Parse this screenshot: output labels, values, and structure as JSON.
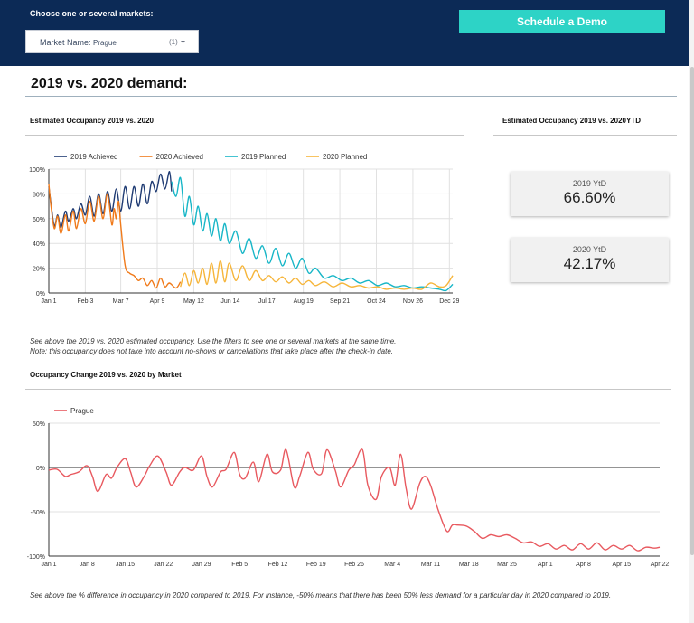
{
  "header": {
    "filter_label": "Choose one or several markets:",
    "market_field_label": "Market Name",
    "market_value": "Prague",
    "market_count": "(1)",
    "demo_button_label": "Schedule a Demo",
    "colors": {
      "header_bg": "#0c2a56",
      "button": "#2dd3c6"
    }
  },
  "page_title": "2019 vs. 2020 demand:",
  "occupancy_section_title": "Estimated Occupancy 2019 vs. 2020",
  "ytd_section_title": "Estimated Occupancy 2019 vs. 2020YTD",
  "kpis": [
    {
      "label": "2019 YtD",
      "value": "66.60%"
    },
    {
      "label": "2020 YtD",
      "value": "42.17%"
    }
  ],
  "occupancy_notes": [
    "See above the 2019 vs. 2020 estimated occupancy. Use the filters to see one or several markets at the same time.",
    "Note: this occupancy does not take into account no-shows or cancellations that take place after the check-in date."
  ],
  "change_section_title": "Occupancy Change 2019 vs. 2020 by Market",
  "change_note": "See above the % difference in occupancy in 2020 compared to 2019. For instance, -50% means that there has been 50% less demand for a particular day in 2020 compared to 2019.",
  "chart_data": [
    {
      "type": "line",
      "x_unit": "day of year",
      "x_ticks": [
        {
          "label": "Jan 1",
          "x": 1
        },
        {
          "label": "Feb 3",
          "x": 34
        },
        {
          "label": "Mar 7",
          "x": 66
        },
        {
          "label": "Apr 9",
          "x": 99
        },
        {
          "label": "May 12",
          "x": 132
        },
        {
          "label": "Jun 14",
          "x": 165
        },
        {
          "label": "Jul 17",
          "x": 198
        },
        {
          "label": "Aug 19",
          "x": 231
        },
        {
          "label": "Sep 21",
          "x": 264
        },
        {
          "label": "Oct 24",
          "x": 297
        },
        {
          "label": "Nov 26",
          "x": 330
        },
        {
          "label": "Dec 29",
          "x": 363
        }
      ],
      "y_ticks": [
        "0%",
        "20%",
        "40%",
        "60%",
        "80%",
        "100%"
      ],
      "xlim": [
        1,
        366
      ],
      "ylim": [
        0,
        100
      ],
      "grid": true,
      "legend_position": "top",
      "series": [
        {
          "name": "2019 Achieved",
          "color": "#1f3b73",
          "x": [
            1,
            3,
            6,
            9,
            12,
            16,
            19,
            23,
            26,
            30,
            34,
            38,
            42,
            46,
            50,
            54,
            58,
            62,
            66,
            70,
            74,
            78,
            82,
            86,
            90,
            94,
            98,
            102,
            106,
            110,
            112
          ],
          "y": [
            86,
            72,
            54,
            63,
            53,
            66,
            58,
            68,
            60,
            72,
            63,
            78,
            62,
            80,
            64,
            82,
            66,
            84,
            66,
            86,
            68,
            86,
            70,
            88,
            72,
            90,
            82,
            96,
            84,
            98,
            82
          ]
        },
        {
          "name": "2020 Achieved",
          "color": "#f07a1a",
          "x": [
            1,
            3,
            6,
            9,
            12,
            16,
            19,
            23,
            26,
            30,
            34,
            38,
            42,
            46,
            50,
            54,
            58,
            60,
            62,
            64,
            66,
            70,
            74,
            78,
            82,
            86,
            90,
            94,
            98,
            102,
            106,
            110,
            116,
            120
          ],
          "y": [
            88,
            70,
            52,
            62,
            48,
            63,
            50,
            66,
            52,
            68,
            56,
            74,
            58,
            78,
            60,
            80,
            55,
            68,
            60,
            74,
            55,
            22,
            16,
            14,
            10,
            12,
            6,
            10,
            4,
            12,
            5,
            8,
            4,
            9
          ]
        },
        {
          "name": "2019 Planned",
          "color": "#17b6c7",
          "x": [
            112,
            116,
            120,
            124,
            128,
            132,
            136,
            140,
            144,
            148,
            152,
            156,
            160,
            164,
            170,
            176,
            182,
            188,
            194,
            200,
            206,
            212,
            218,
            224,
            230,
            236,
            242,
            250,
            258,
            266,
            274,
            282,
            290,
            298,
            306,
            314,
            322,
            330,
            338,
            346,
            354,
            360,
            366
          ],
          "y": [
            90,
            78,
            93,
            62,
            78,
            55,
            70,
            50,
            64,
            46,
            60,
            42,
            56,
            40,
            50,
            32,
            44,
            28,
            38,
            24,
            36,
            22,
            32,
            20,
            28,
            16,
            20,
            12,
            14,
            10,
            12,
            8,
            10,
            6,
            8,
            5,
            6,
            4,
            5,
            4,
            3,
            2,
            7
          ]
        },
        {
          "name": "2020 Planned",
          "color": "#f6b53a",
          "x": [
            120,
            124,
            128,
            132,
            136,
            140,
            144,
            148,
            152,
            156,
            160,
            164,
            170,
            176,
            182,
            188,
            194,
            200,
            206,
            212,
            218,
            224,
            230,
            236,
            242,
            250,
            258,
            266,
            274,
            282,
            290,
            298,
            306,
            314,
            322,
            330,
            338,
            346,
            354,
            360,
            366
          ],
          "y": [
            5,
            16,
            6,
            18,
            8,
            20,
            7,
            24,
            8,
            26,
            9,
            24,
            10,
            22,
            10,
            18,
            10,
            14,
            9,
            13,
            8,
            12,
            7,
            10,
            6,
            9,
            5,
            8,
            5,
            6,
            4,
            5,
            3,
            4,
            3,
            4,
            3,
            8,
            5,
            6,
            14
          ]
        }
      ]
    },
    {
      "type": "line",
      "x_unit": "day offset from Jan 1",
      "x_ticks": [
        {
          "label": "Jan 1",
          "x": 0
        },
        {
          "label": "Jan 8",
          "x": 7
        },
        {
          "label": "Jan 15",
          "x": 14
        },
        {
          "label": "Jan 22",
          "x": 21
        },
        {
          "label": "Jan 29",
          "x": 28
        },
        {
          "label": "Feb 5",
          "x": 35
        },
        {
          "label": "Feb 12",
          "x": 42
        },
        {
          "label": "Feb 19",
          "x": 49
        },
        {
          "label": "Feb 26",
          "x": 56
        },
        {
          "label": "Mar 4",
          "x": 63
        },
        {
          "label": "Mar 11",
          "x": 70
        },
        {
          "label": "Mar 18",
          "x": 77
        },
        {
          "label": "Mar 25",
          "x": 84
        },
        {
          "label": "Apr 1",
          "x": 91
        },
        {
          "label": "Apr 8",
          "x": 98
        },
        {
          "label": "Apr 15",
          "x": 105
        },
        {
          "label": "Apr 22",
          "x": 112
        }
      ],
      "y_ticks": [
        "-100%",
        "-50%",
        "0%",
        "50%"
      ],
      "xlim": [
        0,
        112
      ],
      "ylim": [
        -100,
        50
      ],
      "legend_position": "top-left",
      "series": [
        {
          "name": "Prague",
          "color": "#e8595f",
          "x": [
            0,
            1.5,
            3,
            4,
            5.5,
            7,
            8,
            9,
            10.5,
            11.5,
            12.5,
            14,
            15,
            16,
            17.5,
            18.5,
            20,
            21.5,
            22.5,
            24,
            25,
            26.5,
            28,
            29,
            30,
            31.5,
            32.5,
            34,
            35,
            36,
            37.5,
            38.5,
            40,
            41,
            42.5,
            43.5,
            45,
            46,
            47.5,
            48.5,
            50,
            51,
            52.5,
            53.5,
            55,
            56,
            57.5,
            58.5,
            60,
            61,
            62.5,
            63.5,
            64.5,
            65.5,
            66.5,
            68,
            69,
            70,
            71.5,
            73,
            74,
            75,
            76.5,
            78,
            79.5,
            81,
            82.5,
            84,
            85.5,
            87,
            88.5,
            90,
            91.5,
            93,
            94.5,
            96,
            97.5,
            99,
            100.5,
            102,
            103.5,
            105,
            106.5,
            108,
            109.5,
            111,
            112
          ],
          "y": [
            -3,
            -2,
            -10,
            -8,
            -5,
            2,
            -10,
            -27,
            -8,
            -12,
            0,
            10,
            -5,
            -22,
            -10,
            2,
            13,
            -5,
            -20,
            -5,
            0,
            -3,
            13,
            -10,
            -22,
            -5,
            -2,
            17,
            -8,
            -12,
            6,
            -16,
            15,
            -5,
            -3,
            20,
            -22,
            -10,
            17,
            -2,
            -7,
            20,
            -3,
            -22,
            -3,
            3,
            20,
            -20,
            -36,
            -10,
            0,
            -20,
            15,
            -23,
            -47,
            -18,
            -10,
            -20,
            -50,
            -72,
            -65,
            -65,
            -66,
            -72,
            -80,
            -76,
            -78,
            -76,
            -80,
            -85,
            -84,
            -89,
            -86,
            -92,
            -88,
            -93,
            -86,
            -92,
            -85,
            -93,
            -88,
            -92,
            -88,
            -94,
            -90,
            -91,
            -90
          ]
        }
      ]
    }
  ]
}
